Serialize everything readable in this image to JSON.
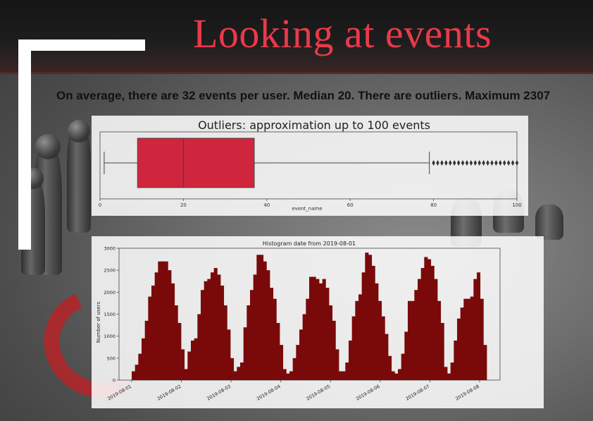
{
  "slide": {
    "title": "Looking at events",
    "subtitle": "On average, there are 32 events per user. Median 20. There are outliers. Maximum 2307"
  },
  "colors": {
    "title": "#e83a4a",
    "box_fill": "#d0263d",
    "hist_bar": "#7a0a0a"
  },
  "chart_data": [
    {
      "type": "box",
      "title": "Outliers: approximation up to 100 events",
      "xlabel": "event_name",
      "xlim": [
        0,
        100
      ],
      "xticks": [
        "0",
        "20",
        "40",
        "60",
        "80",
        "100"
      ],
      "stats": {
        "whisker_low": 1,
        "q1": 9,
        "median": 20,
        "q3": 37,
        "whisker_high": 79
      },
      "outliers": [
        80,
        81,
        82,
        83,
        84,
        85,
        86,
        87,
        88,
        89,
        90,
        91,
        92,
        93,
        94,
        95,
        96,
        97,
        98,
        99,
        100
      ]
    },
    {
      "type": "bar",
      "title": "Histogram date from 2019-08-01",
      "xlabel": "",
      "ylabel": "Number of users",
      "ylim": [
        0,
        3000
      ],
      "yticks": [
        "0",
        "500",
        "1000",
        "1500",
        "2000",
        "2500",
        "3000"
      ],
      "xticks": [
        "2019-08-01",
        "2019-08-02",
        "2019-08-03",
        "2019-08-04",
        "2019-08-05",
        "2019-08-06",
        "2019-08-07",
        "2019-08-08"
      ],
      "values": [
        200,
        350,
        600,
        950,
        1350,
        1900,
        2150,
        2450,
        2700,
        2700,
        2700,
        2500,
        2200,
        1700,
        1300,
        700,
        250,
        650,
        900,
        950,
        1500,
        2050,
        2250,
        2300,
        2450,
        2550,
        2400,
        2150,
        1700,
        1150,
        500,
        200,
        300,
        400,
        1200,
        1700,
        2050,
        2400,
        2850,
        2850,
        2700,
        2500,
        2100,
        1850,
        1300,
        800,
        250,
        150,
        200,
        500,
        800,
        1150,
        1500,
        1850,
        2350,
        2350,
        2300,
        2200,
        2300,
        2100,
        1700,
        1350,
        700,
        200,
        200,
        400,
        900,
        1450,
        1800,
        1950,
        2450,
        2900,
        2850,
        2600,
        2200,
        1800,
        1450,
        1050,
        550,
        200,
        150,
        250,
        600,
        1100,
        1800,
        1800,
        2050,
        2300,
        2550,
        2800,
        2750,
        2600,
        2300,
        1800,
        1300,
        300,
        150,
        400,
        900,
        1400,
        1650,
        1850,
        1850,
        1900,
        2300,
        2450,
        1850,
        800
      ]
    }
  ]
}
